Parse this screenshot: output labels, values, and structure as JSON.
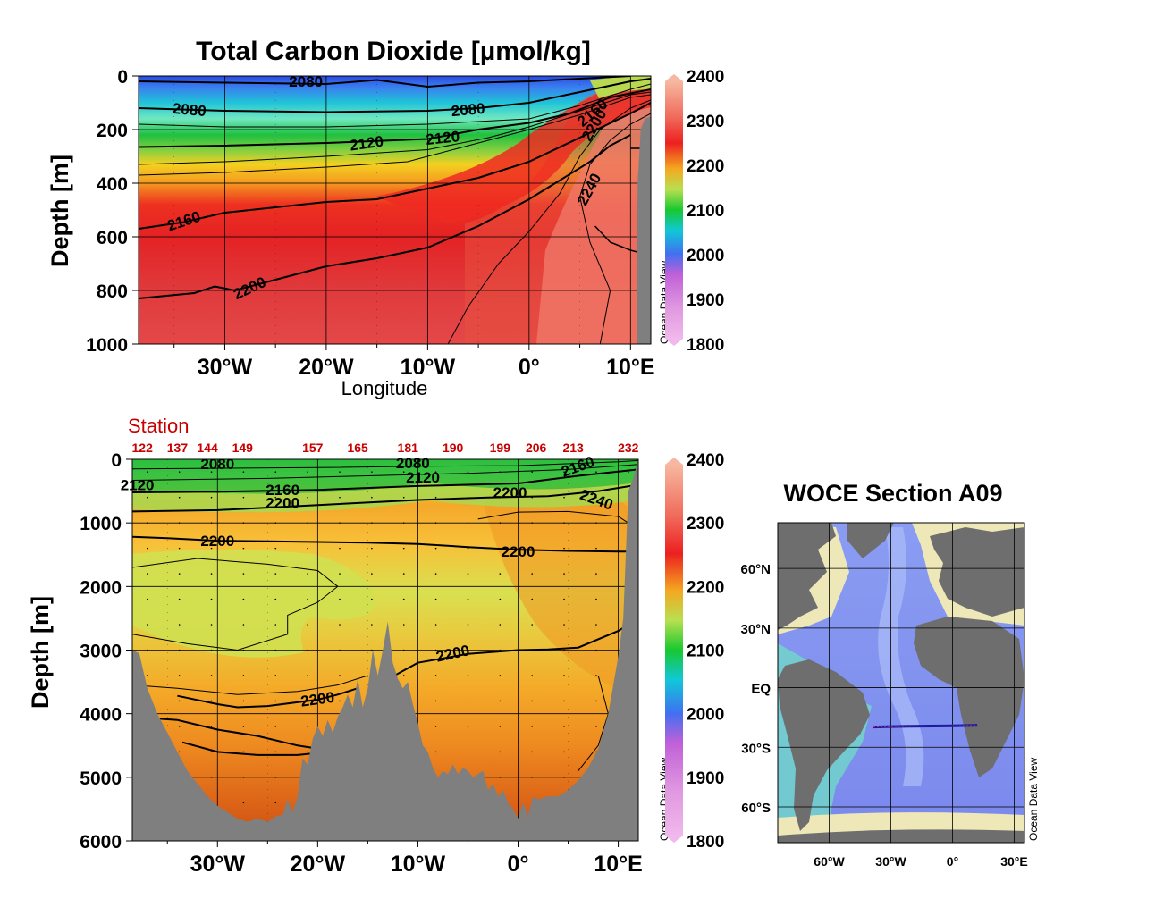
{
  "colors": {
    "land": "#7f7f7f",
    "contour": "#000000",
    "station": "#c80000",
    "track": "#1a1aa0",
    "colorbar": [
      "#f0b8ec",
      "#dc78dc",
      "#6a5adc",
      "#2c8cf4",
      "#10c8c8",
      "#18c828",
      "#b8e050",
      "#f4a820",
      "#ec2020",
      "#f4a08a",
      "#f6b0a0"
    ]
  },
  "chart_data": [
    {
      "id": "upper-section",
      "type": "heatmap",
      "title": "Total Carbon Dioxide [µmol/kg]",
      "xlabel": "Longitude",
      "ylabel": "Depth [m]",
      "xlim": [
        -38.5,
        12
      ],
      "ylim": [
        0,
        1000
      ],
      "xticks": [
        {
          "value": -30,
          "label": "30°W"
        },
        {
          "value": -20,
          "label": "20°W"
        },
        {
          "value": -10,
          "label": "10°W"
        },
        {
          "value": 0,
          "label": "0°"
        },
        {
          "value": 10,
          "label": "10°E"
        }
      ],
      "yticks": [
        {
          "value": 0,
          "label": "0"
        },
        {
          "value": 200,
          "label": "200"
        },
        {
          "value": 400,
          "label": "400"
        },
        {
          "value": 600,
          "label": "600"
        },
        {
          "value": 800,
          "label": "800"
        },
        {
          "value": 1000,
          "label": "1000"
        }
      ],
      "colorbar_ticks": [
        {
          "value": 2400,
          "label": "2400"
        },
        {
          "value": 2300,
          "label": "2300"
        },
        {
          "value": 2200,
          "label": "2200"
        },
        {
          "value": 2100,
          "label": "2100"
        },
        {
          "value": 2000,
          "label": "2000"
        },
        {
          "value": 1900,
          "label": "1900"
        },
        {
          "value": 1800,
          "label": "1800"
        }
      ],
      "colorbar_range": [
        1800,
        2400
      ],
      "watermark": "Ocean Data View",
      "contour_labels": [
        {
          "label": "2080",
          "x": -22,
          "y": 25,
          "angle": 0
        },
        {
          "label": "2080",
          "x": -33.5,
          "y": 130,
          "angle": 5
        },
        {
          "label": "2080",
          "x": -6,
          "y": 130,
          "angle": -5
        },
        {
          "label": "2120",
          "x": -16,
          "y": 255,
          "angle": -8
        },
        {
          "label": "2120",
          "x": -8.5,
          "y": 235,
          "angle": -6
        },
        {
          "label": "2160",
          "x": -34,
          "y": 545,
          "angle": -18
        },
        {
          "label": "2200",
          "x": -27.5,
          "y": 795,
          "angle": -25
        },
        {
          "label": "2160",
          "x": 6.3,
          "y": 140,
          "angle": -40
        },
        {
          "label": "2200",
          "x": 6.5,
          "y": 185,
          "angle": -60
        },
        {
          "label": "2240",
          "x": 6,
          "y": 425,
          "angle": -62
        }
      ]
    },
    {
      "id": "lower-section",
      "type": "heatmap",
      "ylabel": "Depth [m]",
      "xlim": [
        -38.5,
        12
      ],
      "ylim": [
        0,
        6000
      ],
      "station_title": "Station",
      "stations": [
        {
          "label": "122",
          "x": -37.5
        },
        {
          "label": "137",
          "x": -34
        },
        {
          "label": "144",
          "x": -31
        },
        {
          "label": "149",
          "x": -27.5
        },
        {
          "label": "157",
          "x": -20.5
        },
        {
          "label": "165",
          "x": -16
        },
        {
          "label": "181",
          "x": -11
        },
        {
          "label": "190",
          "x": -6.5
        },
        {
          "label": "199",
          "x": -1.8
        },
        {
          "label": "206",
          "x": 1.8
        },
        {
          "label": "213",
          "x": 5.5
        },
        {
          "label": "232",
          "x": 11
        }
      ],
      "xticks": [
        {
          "value": -30,
          "label": "30°W"
        },
        {
          "value": -20,
          "label": "20°W"
        },
        {
          "value": -10,
          "label": "10°W"
        },
        {
          "value": 0,
          "label": "0°"
        },
        {
          "value": 10,
          "label": "10°E"
        }
      ],
      "yticks": [
        {
          "value": 0,
          "label": "0"
        },
        {
          "value": 1000,
          "label": "1000"
        },
        {
          "value": 2000,
          "label": "2000"
        },
        {
          "value": 3000,
          "label": "3000"
        },
        {
          "value": 4000,
          "label": "4000"
        },
        {
          "value": 5000,
          "label": "5000"
        },
        {
          "value": 6000,
          "label": "6000"
        }
      ],
      "colorbar_ticks": [
        {
          "value": 2400,
          "label": "2400"
        },
        {
          "value": 2300,
          "label": "2300"
        },
        {
          "value": 2200,
          "label": "2200"
        },
        {
          "value": 2100,
          "label": "2100"
        },
        {
          "value": 2000,
          "label": "2000"
        },
        {
          "value": 1900,
          "label": "1900"
        },
        {
          "value": 1800,
          "label": "1800"
        }
      ],
      "colorbar_range": [
        1800,
        2400
      ],
      "watermark": "Ocean Data View",
      "contour_labels": [
        {
          "label": "2080",
          "x": -30,
          "y": 90,
          "angle": 0
        },
        {
          "label": "2080",
          "x": -10.5,
          "y": 80,
          "angle": 0
        },
        {
          "label": "2120",
          "x": -38,
          "y": 420,
          "angle": 0
        },
        {
          "label": "2120",
          "x": -9.5,
          "y": 300,
          "angle": 0
        },
        {
          "label": "2160",
          "x": -23.5,
          "y": 500,
          "angle": 0
        },
        {
          "label": "2200",
          "x": -23.5,
          "y": 700,
          "angle": 0
        },
        {
          "label": "2200",
          "x": -0.8,
          "y": 540,
          "angle": 0
        },
        {
          "label": "2160",
          "x": 6,
          "y": 130,
          "angle": -20
        },
        {
          "label": "2240",
          "x": 7.8,
          "y": 650,
          "angle": 20
        },
        {
          "label": "2200",
          "x": -30,
          "y": 1300,
          "angle": 0
        },
        {
          "label": "2200",
          "x": 0,
          "y": 1470,
          "angle": 0
        },
        {
          "label": "2200",
          "x": -6.5,
          "y": 3070,
          "angle": -12
        },
        {
          "label": "2200",
          "x": -20,
          "y": 3790,
          "angle": -8
        }
      ],
      "bathymetry": {
        "x": [
          -38.5,
          -37.8,
          -37,
          -36,
          -35,
          -34,
          -33,
          -32,
          -31,
          -30,
          -29,
          -28,
          -27,
          -26,
          -25,
          -24,
          -23.5,
          -23,
          -22.5,
          -22,
          -21.5,
          -21,
          -20.5,
          -20,
          -19.5,
          -19,
          -18.5,
          -18,
          -17.5,
          -17,
          -16.5,
          -16,
          -15.5,
          -15,
          -14.5,
          -14,
          -13.5,
          -13,
          -12.5,
          -12,
          -11.5,
          -11,
          -10.5,
          -10,
          -9.5,
          -9,
          -8.5,
          -8,
          -7.5,
          -7,
          -6.5,
          -6,
          -5.5,
          -5,
          -4.5,
          -4,
          -3.5,
          -3,
          -2.5,
          -2,
          -1.5,
          -1,
          -0.5,
          0,
          0.5,
          1,
          1.5,
          2,
          3,
          4,
          5,
          6,
          7,
          8,
          9,
          10,
          10.5,
          11,
          11.5,
          12
        ],
        "y": [
          3000,
          3050,
          3600,
          4000,
          4300,
          4600,
          4900,
          5100,
          5300,
          5450,
          5550,
          5650,
          5700,
          5650,
          5700,
          5600,
          5600,
          5350,
          5550,
          5300,
          4700,
          4800,
          4400,
          4200,
          4350,
          4100,
          4300,
          4050,
          3900,
          3700,
          3900,
          3450,
          3900,
          3600,
          3000,
          3400,
          3000,
          2550,
          3200,
          3450,
          3600,
          3500,
          3850,
          4150,
          4500,
          4600,
          4850,
          5000,
          4900,
          4950,
          4800,
          4950,
          4850,
          4900,
          5000,
          4950,
          4900,
          5200,
          5100,
          5300,
          5200,
          5400,
          5500,
          5650,
          5400,
          5600,
          5300,
          5350,
          5300,
          5300,
          5200,
          5050,
          4850,
          4550,
          4000,
          3100,
          2500,
          500,
          300,
          0
        ]
      },
      "contours": [
        {
          "level": "2200",
          "x": [
            -38.5,
            -35,
            -30,
            -25,
            -20,
            -15,
            -10,
            -5,
            0,
            5,
            10,
            12
          ],
          "y": [
            1220,
            1240,
            1280,
            1290,
            1300,
            1310,
            1330,
            1380,
            1420,
            1440,
            1450,
            1450
          ]
        },
        {
          "level": "2200",
          "x": [
            -13.5,
            -10,
            -5,
            0,
            3,
            6,
            10,
            11
          ],
          "y": [
            3500,
            3200,
            3060,
            3000,
            2990,
            2960,
            2700,
            2600
          ]
        },
        {
          "level": "2200",
          "x": [
            -34,
            -30,
            -28,
            -25,
            -20,
            -18,
            -16
          ],
          "y": [
            3720,
            3850,
            3900,
            3880,
            3780,
            3700,
            3600
          ]
        },
        {
          "level": "2160",
          "x": [
            -38.5,
            -34,
            -30,
            -26,
            -22,
            -20
          ],
          "y": [
            4050,
            4100,
            4250,
            4350,
            4500,
            4550
          ]
        }
      ]
    },
    {
      "id": "section-map",
      "type": "map",
      "title": "WOCE Section A09",
      "watermark": "Ocean Data View",
      "lat_labels": [
        {
          "value": 60,
          "label": "60°N"
        },
        {
          "value": 30,
          "label": "30°N"
        },
        {
          "value": 0,
          "label": "EQ"
        },
        {
          "value": -30,
          "label": "30°S"
        },
        {
          "value": -60,
          "label": "60°S"
        }
      ],
      "lon_labels": [
        {
          "value": -60,
          "label": "60°W"
        },
        {
          "value": -30,
          "label": "30°W"
        },
        {
          "value": 0,
          "label": "0°"
        },
        {
          "value": 30,
          "label": "30°E"
        }
      ],
      "track": {
        "x": [
          -38.5,
          -30,
          -20,
          -10,
          0,
          10,
          12
        ],
        "y": [
          -19.8,
          -19.6,
          -19.4,
          -19.3,
          -19.2,
          -19.0,
          -18.9
        ]
      }
    }
  ]
}
